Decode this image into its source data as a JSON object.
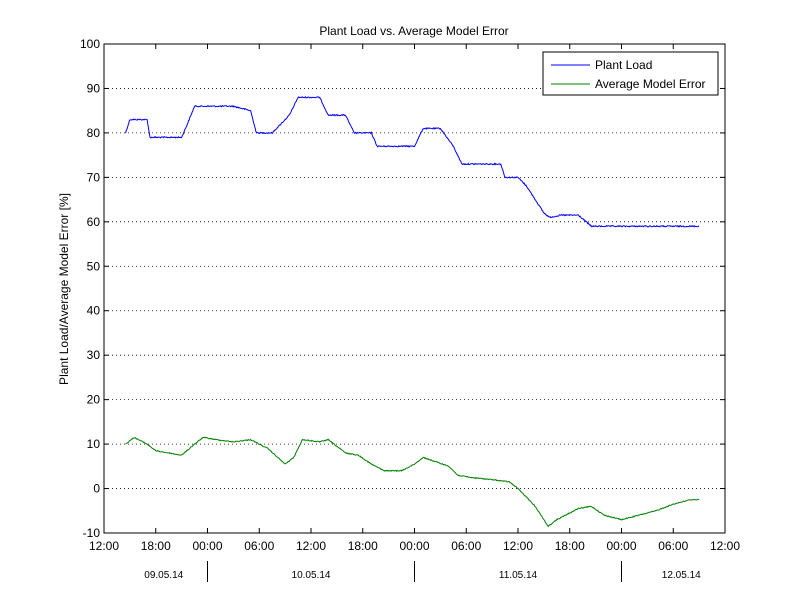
{
  "chart_data": {
    "type": "line",
    "title": "Plant Load vs. Average Model Error",
    "xlabel": "",
    "ylabel": "Plant Load/Average Model Error [%]",
    "ylim": [
      -10,
      100
    ],
    "yticks": [
      -10,
      0,
      10,
      20,
      30,
      40,
      50,
      60,
      70,
      80,
      90,
      100
    ],
    "xlim": [
      "2014-05-09 12:00",
      "2014-05-12 12:00"
    ],
    "xticks": [
      "2014-05-09 12:00",
      "2014-05-09 18:00",
      "2014-05-10 00:00",
      "2014-05-10 06:00",
      "2014-05-10 12:00",
      "2014-05-10 18:00",
      "2014-05-11 00:00",
      "2014-05-11 06:00",
      "2014-05-11 12:00",
      "2014-05-11 18:00",
      "2014-05-12 00:00",
      "2014-05-12 06:00",
      "2014-05-12 12:00"
    ],
    "xtick_labels": [
      "12:00",
      "18:00",
      "00:00",
      "06:00",
      "12:00",
      "18:00",
      "00:00",
      "06:00",
      "12:00",
      "18:00",
      "00:00",
      "06:00",
      "12:00"
    ],
    "date_labels": [
      "09.05.14",
      "10.05.14",
      "11.05.14",
      "12.05.14"
    ],
    "grid": {
      "y": true,
      "x": false,
      "style": "dotted"
    },
    "legend": {
      "position": "top-right"
    },
    "series": [
      {
        "name": "Plant Load",
        "color": "#0000ff",
        "x": [
          "2014-05-09 14:30",
          "2014-05-09 15:00",
          "2014-05-09 17:00",
          "2014-05-09 17:20",
          "2014-05-09 21:00",
          "2014-05-09 21:40",
          "2014-05-09 22:30",
          "2014-05-10 00:00",
          "2014-05-10 03:00",
          "2014-05-10 05:00",
          "2014-05-10 05:40",
          "2014-05-10 07:30",
          "2014-05-10 08:30",
          "2014-05-10 09:30",
          "2014-05-10 10:30",
          "2014-05-10 13:00",
          "2014-05-10 14:00",
          "2014-05-10 16:00",
          "2014-05-10 17:00",
          "2014-05-10 19:00",
          "2014-05-10 19:40",
          "2014-05-11 00:00",
          "2014-05-11 01:00",
          "2014-05-11 03:00",
          "2014-05-11 04:30",
          "2014-05-11 05:30",
          "2014-05-11 10:00",
          "2014-05-11 10:30",
          "2014-05-11 12:00",
          "2014-05-11 13:00",
          "2014-05-11 14:00",
          "2014-05-11 15:00",
          "2014-05-11 15:40",
          "2014-05-11 17:00",
          "2014-05-11 19:00",
          "2014-05-11 20:30",
          "2014-05-11 21:00",
          "2014-05-12 00:00",
          "2014-05-12 03:00",
          "2014-05-12 06:00",
          "2014-05-12 09:00"
        ],
        "values": [
          80,
          83,
          83,
          79,
          79,
          82,
          86,
          86,
          86,
          85,
          80,
          80,
          82,
          84,
          88,
          88,
          84,
          84,
          80,
          80,
          77,
          77,
          81,
          81,
          77,
          73,
          73,
          70,
          70,
          68,
          65,
          62,
          61,
          61.5,
          61.5,
          59,
          59,
          59,
          59,
          59,
          59
        ]
      },
      {
        "name": "Average Model Error",
        "color": "#007f00",
        "x": [
          "2014-05-09 14:30",
          "2014-05-09 15:30",
          "2014-05-09 17:00",
          "2014-05-09 18:00",
          "2014-05-09 19:30",
          "2014-05-09 21:00",
          "2014-05-09 22:30",
          "2014-05-09 23:30",
          "2014-05-10 01:00",
          "2014-05-10 03:00",
          "2014-05-10 05:00",
          "2014-05-10 07:00",
          "2014-05-10 09:00",
          "2014-05-10 10:00",
          "2014-05-10 11:00",
          "2014-05-10 13:00",
          "2014-05-10 14:00",
          "2014-05-10 16:00",
          "2014-05-10 17:30",
          "2014-05-10 19:00",
          "2014-05-10 20:30",
          "2014-05-10 22:30",
          "2014-05-11 00:00",
          "2014-05-11 01:00",
          "2014-05-11 02:30",
          "2014-05-11 04:00",
          "2014-05-11 05:00",
          "2014-05-11 06:30",
          "2014-05-11 09:00",
          "2014-05-11 11:00",
          "2014-05-11 12:00",
          "2014-05-11 14:00",
          "2014-05-11 15:30",
          "2014-05-11 16:30",
          "2014-05-11 19:00",
          "2014-05-11 20:30",
          "2014-05-11 22:00",
          "2014-05-12 00:00",
          "2014-05-12 02:00",
          "2014-05-12 04:00",
          "2014-05-12 06:00",
          "2014-05-12 08:00",
          "2014-05-12 09:00"
        ],
        "values": [
          10,
          11.5,
          10,
          8.5,
          8,
          7.5,
          10,
          11.5,
          11,
          10.5,
          11,
          9,
          5.5,
          7,
          11,
          10.5,
          11,
          8,
          7.5,
          5.5,
          4,
          4,
          5.5,
          7,
          6,
          5,
          3,
          2.5,
          2,
          1.5,
          0,
          -4,
          -8.5,
          -7,
          -4.5,
          -4,
          -6,
          -7,
          -6,
          -5,
          -3.5,
          -2.5,
          -2.5
        ]
      }
    ]
  }
}
